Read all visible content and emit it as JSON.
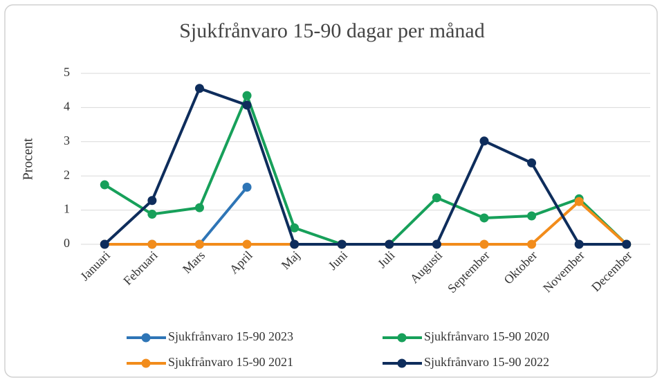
{
  "chart_data": {
    "type": "line",
    "title": "Sjukfrånvaro 15-90 dagar per månad",
    "y_label": "Procent",
    "categories": [
      "Januari",
      "Februari",
      "Mars",
      "April",
      "Maj",
      "Juni",
      "Juli",
      "Augusti",
      "September",
      "Oktober",
      "November",
      "December"
    ],
    "series": [
      {
        "name": "Sjukfrånvaro 15-90 2023",
        "color": "#2e75b6",
        "values": [
          0,
          0,
          0,
          1.67,
          null,
          null,
          null,
          null,
          null,
          null,
          null,
          null
        ]
      },
      {
        "name": "Sjukfrånvaro 15-90 2020",
        "color": "#17a05a",
        "values": [
          1.74,
          0.88,
          1.07,
          4.35,
          0.48,
          0,
          0,
          1.36,
          0.77,
          0.83,
          1.33,
          0
        ]
      },
      {
        "name": "Sjukfrånvaro 15-90 2021",
        "color": "#f28c1b",
        "values": [
          0,
          0,
          0,
          0,
          0,
          0,
          0,
          0,
          0,
          0,
          1.25,
          0
        ]
      },
      {
        "name": "Sjukfrånvaro 15-90 2022",
        "color": "#0e2d5c",
        "values": [
          0,
          1.28,
          4.56,
          4.07,
          0,
          0,
          0,
          0,
          3.02,
          2.38,
          0,
          0
        ]
      }
    ],
    "ylim": [
      0,
      5
    ],
    "yticks": [
      0,
      1,
      2,
      3,
      4,
      5
    ],
    "grid": true,
    "legend": "bottom"
  }
}
